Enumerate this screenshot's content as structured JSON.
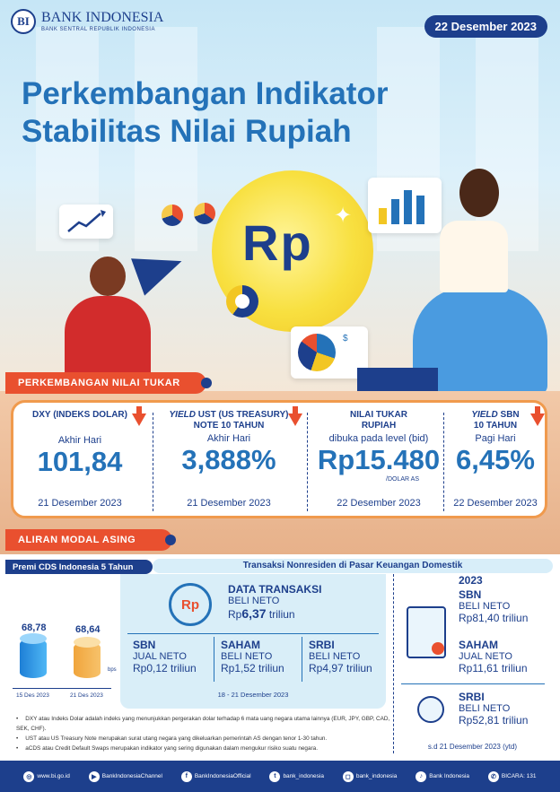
{
  "brand": {
    "name": "BANK INDONESIA",
    "subtitle": "BANK SENTRAL REPUBLIK INDONESIA"
  },
  "date": "22 Desember 2023",
  "title": {
    "line1": "Perkembangan Indikator",
    "line2": "Stabilitas Nilai Rupiah"
  },
  "hero": {
    "coin_text": "Rp"
  },
  "sections": {
    "exchange": "PERKEMBANGAN NILAI TUKAR",
    "capital": "ALIRAN MODAL ASING"
  },
  "indicators": [
    {
      "head": "DXY (INDEKS DOLAR)",
      "sub": "Akhir Hari",
      "value": "101,84",
      "date": "21 Desember 2023",
      "direction": "down"
    },
    {
      "head_italic": "YIELD",
      "head_rest": " UST (US TREASURY)",
      "head_line2": "NOTE 10 TAHUN",
      "sub": "Akhir Hari",
      "value": "3,888%",
      "date": "21 Desember 2023",
      "direction": "down"
    },
    {
      "head": "NILAI TUKAR",
      "head_line2": "RUPIAH",
      "sub": "dibuka pada level (bid)",
      "value": "Rp15.480",
      "unit": "/DOLAR AS",
      "date": "22 Desember 2023"
    },
    {
      "head_italic": "YIELD",
      "head_rest": " SBN",
      "head_line2": "10 TAHUN",
      "sub": "Pagi Hari",
      "value": "6,45%",
      "date": "22 Desember 2023",
      "direction": "down"
    }
  ],
  "cds": {
    "label": "Premi CDS Indonesia 5 Tahun",
    "unit": "bps",
    "points": [
      {
        "date": "15 Des 2023",
        "value": "68,78"
      },
      {
        "date": "21 Des 2023",
        "value": "68,64"
      }
    ]
  },
  "transactions": {
    "label": "Transaksi Nonresiden di Pasar Keuangan Domestik",
    "icon_text": "Rp",
    "summary": {
      "title": "DATA TRANSAKSI",
      "status": "BELI NETO",
      "value_prefix": "Rp",
      "value": "6,37",
      "value_suffix": " triliun"
    },
    "items": [
      {
        "name": "SBN",
        "status": "JUAL NETO",
        "value_prefix": "Rp",
        "value": "0,12",
        "value_suffix": " triliun"
      },
      {
        "name": "SAHAM",
        "status": "BELI NETO",
        "value_prefix": "Rp",
        "value": "1,52",
        "value_suffix": " triliun"
      },
      {
        "name": "SRBI",
        "status": "BELI NETO",
        "value_prefix": "Rp",
        "value": "4,97",
        "value_suffix": " triliun"
      }
    ],
    "period": "18 - 21 Desember 2023"
  },
  "ytd": {
    "year": "2023",
    "items": [
      {
        "name": "SBN",
        "status": "BELI NETO",
        "value_prefix": "Rp",
        "value": "81,40",
        "value_suffix": " triliun"
      },
      {
        "name": "SAHAM",
        "status": "JUAL NETO",
        "value_prefix": "Rp",
        "value": "11,61",
        "value_suffix": " triliun"
      },
      {
        "name": "SRBI",
        "status": "BELI NETO",
        "value_prefix": "Rp",
        "value": "52,81",
        "value_suffix": " triliun"
      }
    ],
    "period": "s.d 21 Desember 2023 (ytd)"
  },
  "notes": [
    "DXY atau Indeks Dolar adalah indeks yang menunjukkan pergerakan dolar terhadap 6 mata uang negara utama lainnya (EUR, JPY, GBP, CAD, SEK, CHF).",
    "UST atau US Treasury Note merupakan surat utang negara yang dikeluarkan pemerintah AS dengan tenor 1-30 tahun.",
    "aCDS atau Credit Default Swaps merupakan indikator yang sering digunakan dalam mengukur risiko suatu negara."
  ],
  "footer": [
    {
      "icon": "globe-icon",
      "glyph": "◎",
      "text": "www.bi.go.id"
    },
    {
      "icon": "youtube-icon",
      "glyph": "▶",
      "text": "BankIndonesiaChannel"
    },
    {
      "icon": "facebook-icon",
      "glyph": "f",
      "text": "BankIndonesiaOfficial"
    },
    {
      "icon": "twitter-icon",
      "glyph": "t",
      "text": "bank_indonesia"
    },
    {
      "icon": "instagram-icon",
      "glyph": "◻",
      "text": "bank_indonesia"
    },
    {
      "icon": "tiktok-icon",
      "glyph": "♪",
      "text": "Bank Indonesia"
    },
    {
      "icon": "phone-icon",
      "glyph": "✆",
      "text": "BICARA: 131"
    }
  ],
  "colors": {
    "navy": "#1d3f8c",
    "blue": "#2472b8",
    "orange": "#e9502f",
    "amber": "#f09a4d",
    "light": "#d9eef8"
  }
}
